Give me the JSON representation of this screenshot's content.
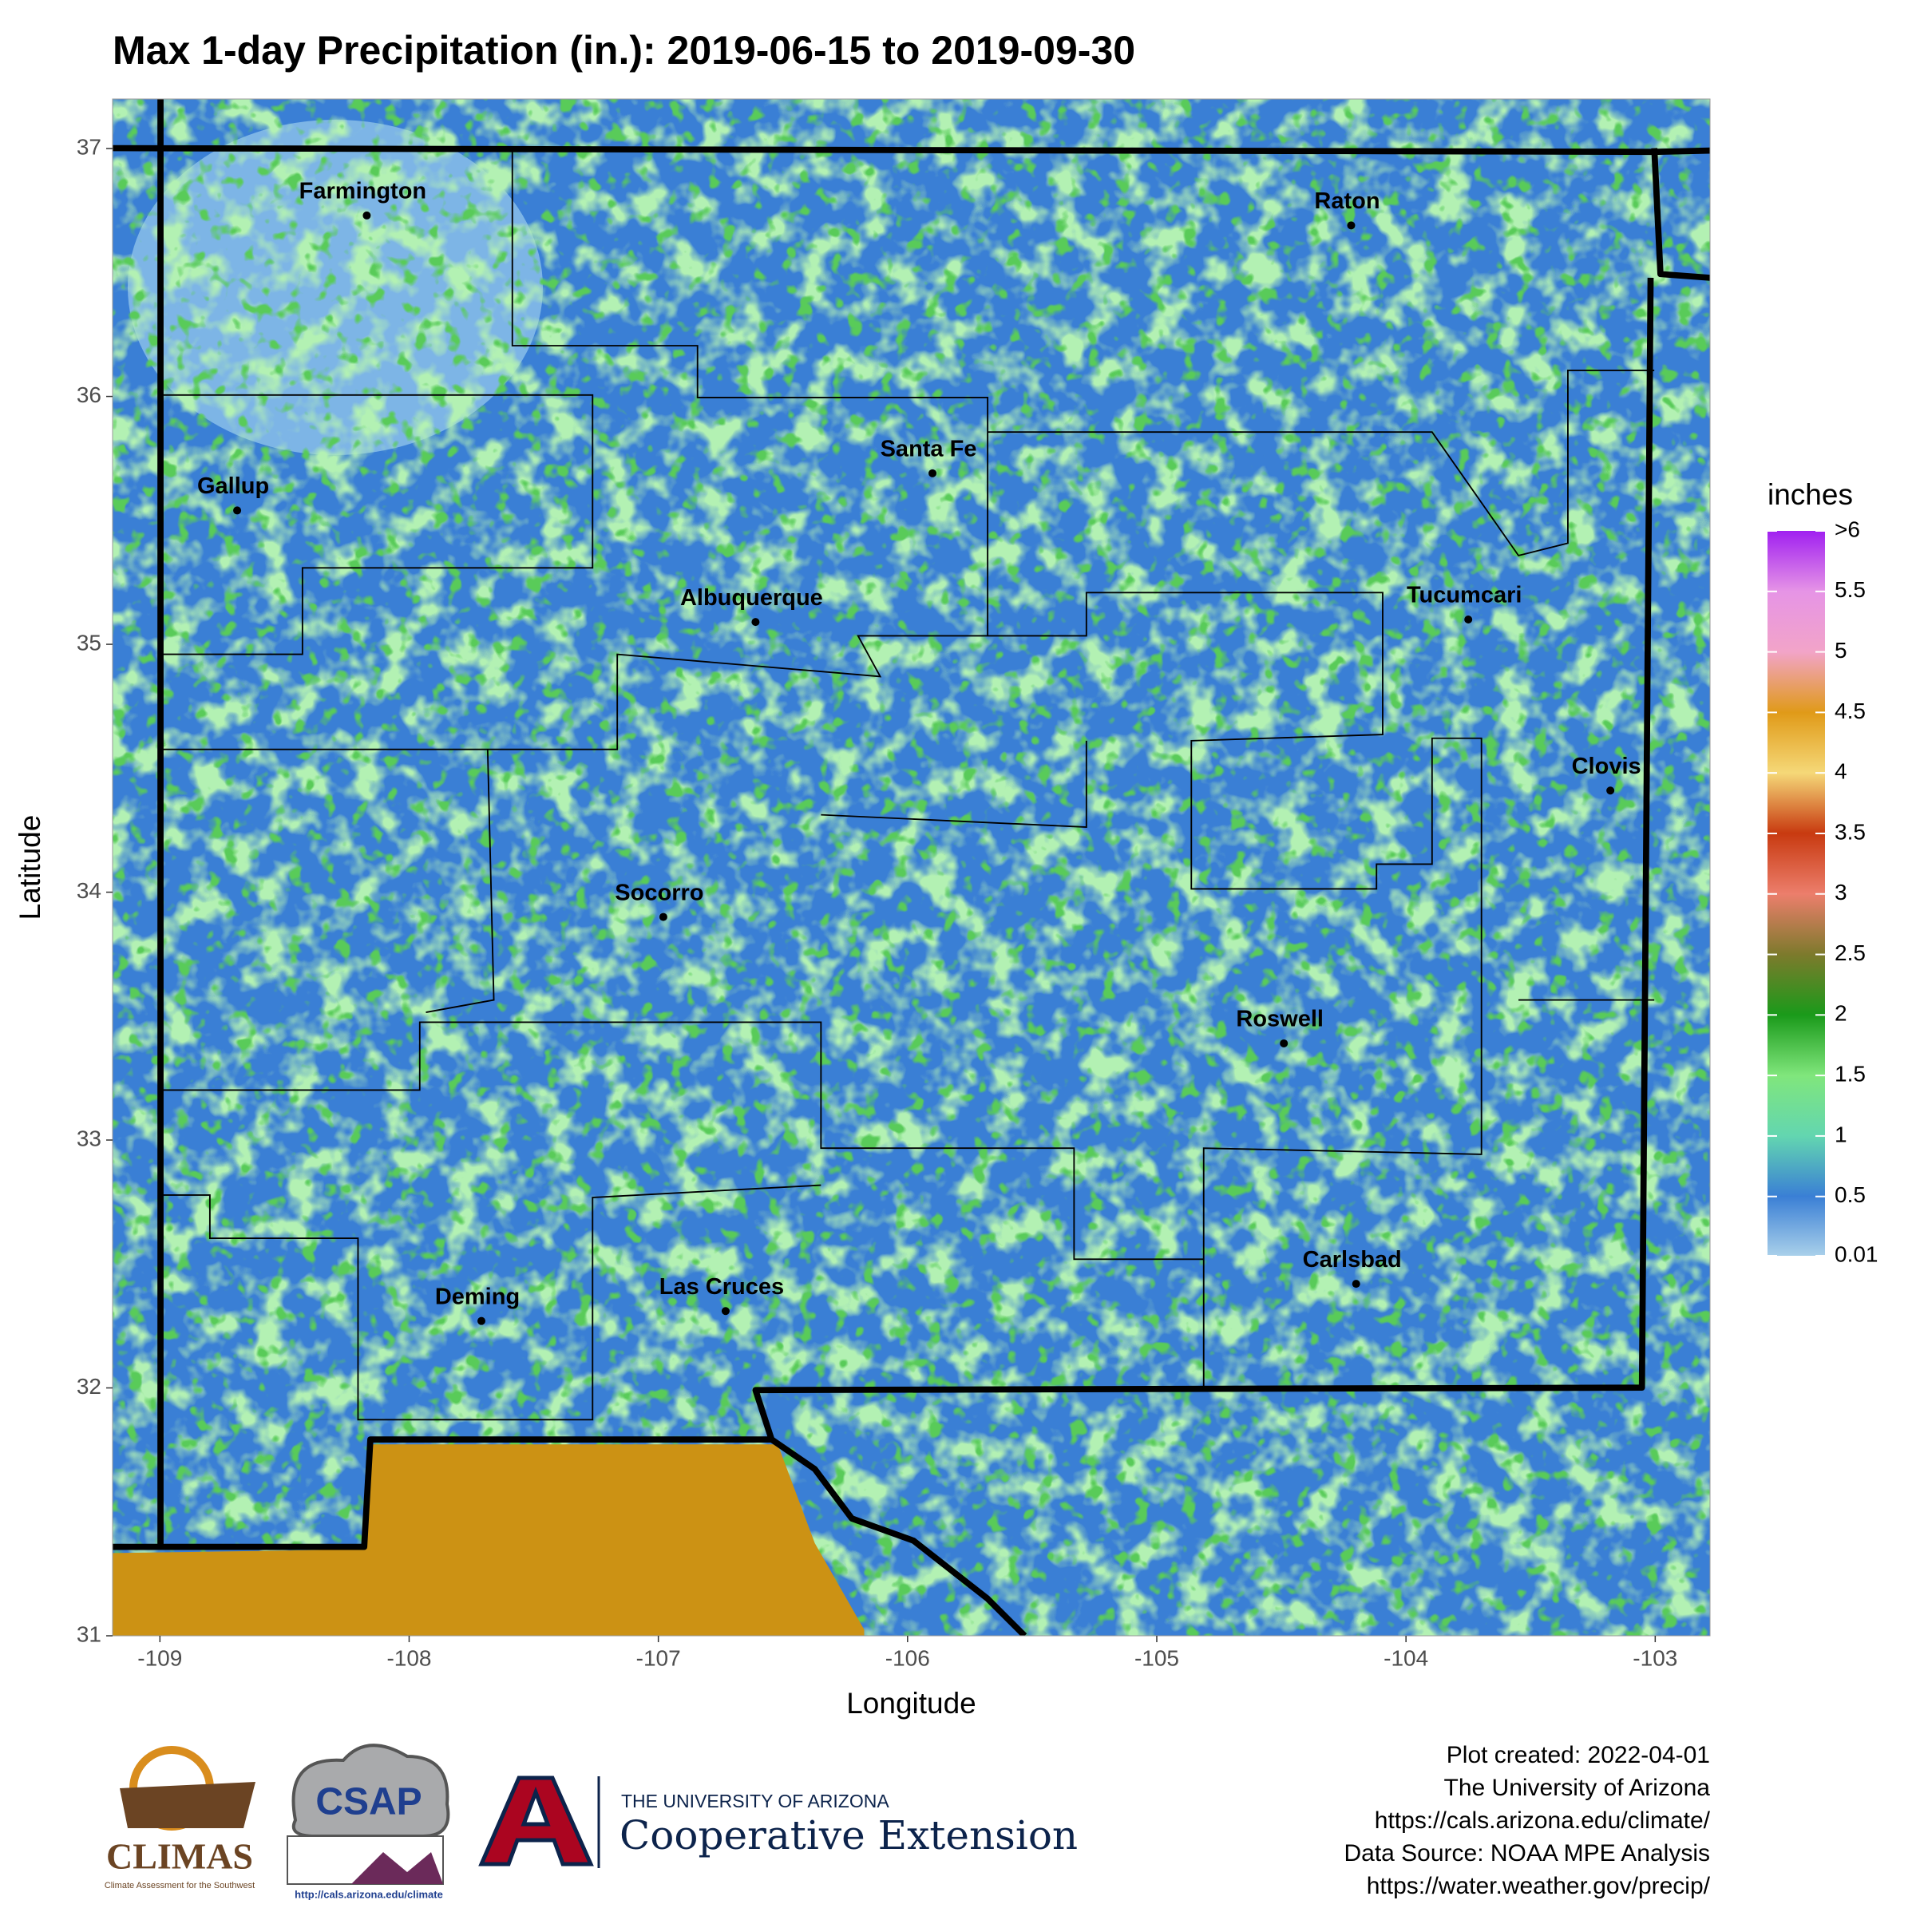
{
  "map": {
    "title": "Max 1-day Precipitation (in.): 2019-06-15 to 2019-09-30",
    "x_label": "Longitude",
    "y_label": "Latitude",
    "xlim": [
      -109.19,
      -102.78
    ],
    "ylim": [
      31,
      37.2
    ],
    "xticks": [
      -109,
      -108,
      -107,
      -106,
      -105,
      -104,
      -103
    ],
    "yticks": [
      31,
      32,
      33,
      34,
      35,
      36,
      37
    ],
    "cities": [
      {
        "name": "Farmington",
        "lon": -108.17,
        "lat": 36.73
      },
      {
        "name": "Raton",
        "lon": -104.22,
        "lat": 36.69
      },
      {
        "name": "Santa Fe",
        "lon": -105.9,
        "lat": 35.69
      },
      {
        "name": "Gallup",
        "lon": -108.69,
        "lat": 35.54
      },
      {
        "name": "Albuquerque",
        "lon": -106.61,
        "lat": 35.09
      },
      {
        "name": "Tucumcari",
        "lon": -103.75,
        "lat": 35.1
      },
      {
        "name": "Clovis",
        "lon": -103.18,
        "lat": 34.41
      },
      {
        "name": "Socorro",
        "lon": -106.98,
        "lat": 33.9
      },
      {
        "name": "Roswell",
        "lon": -104.49,
        "lat": 33.39
      },
      {
        "name": "Carlsbad",
        "lon": -104.2,
        "lat": 32.42
      },
      {
        "name": "Deming",
        "lon": -107.71,
        "lat": 32.27
      },
      {
        "name": "Las Cruces",
        "lon": -106.73,
        "lat": 32.31
      }
    ],
    "legend": {
      "title": "inches",
      "ticks": [
        0.01,
        0.5,
        1,
        1.5,
        2,
        2.5,
        3,
        3.5,
        4,
        4.5,
        5,
        5.5,
        {
          "value": 6,
          "label": ">6"
        }
      ],
      "colors": [
        "#a9d0ea",
        "#3a7fd5",
        "#63d6b0",
        "#80e67c",
        "#1a9a1a",
        "#7d7a2c",
        "#ec7e6c",
        "#c83a10",
        "#f5d878",
        "#e09a18",
        "#f2a4c8",
        "#e694e6",
        "#a020f0"
      ]
    },
    "credits": [
      "Plot created: 2022-04-01",
      "The University of Arizona",
      "https://cals.arizona.edu/climate/",
      "Data Source: NOAA MPE Analysis",
      "https://water.weather.gov/precip/"
    ],
    "logos": {
      "climas": "CLIMAS",
      "climas_sub": "Climate Assessment for the Southwest",
      "csap": "CSAP",
      "csap_url": "http://cals.arizona.edu/climate",
      "ua_name": "THE UNIVERSITY OF ARIZONA",
      "ua_unit": "Cooperative Extension"
    }
  }
}
